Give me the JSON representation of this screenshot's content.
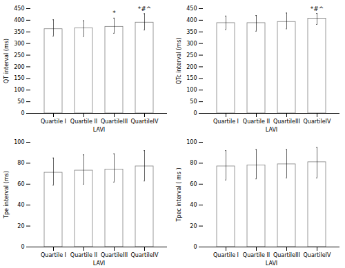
{
  "chart_data": [
    {
      "type": "bar",
      "xlabel": "LAVI",
      "ylabel": "QT interval (ms)",
      "categories": [
        "Quartile I",
        "Quartile II",
        "QuartileIII",
        "QuartileIV"
      ],
      "values": [
        362,
        366,
        372,
        390
      ],
      "error_upper": [
        40,
        32,
        37,
        38
      ],
      "error_lower": [
        30,
        35,
        28,
        32
      ],
      "ylim": [
        0,
        450
      ],
      "yticks": [
        0,
        50,
        100,
        150,
        200,
        250,
        300,
        350,
        400,
        450
      ],
      "color": "#ffffff",
      "annotations": [
        {
          "category": "QuartileIII",
          "text": "*"
        },
        {
          "category": "QuartileIV",
          "text": "*#^"
        }
      ]
    },
    {
      "type": "bar",
      "xlabel": "LAVI",
      "ylabel": "QTc interval (ms)",
      "categories": [
        "Quartile I",
        "Quartile II",
        "QuartileIII",
        "QuartileIV"
      ],
      "values": [
        388,
        388,
        393,
        407
      ],
      "error_upper": [
        30,
        32,
        38,
        22
      ],
      "error_lower": [
        28,
        35,
        30,
        25
      ],
      "ylim": [
        0,
        450
      ],
      "yticks": [
        0,
        50,
        100,
        150,
        200,
        250,
        300,
        350,
        400,
        450
      ],
      "color": "#ffffff",
      "annotations": [
        {
          "category": "QuartileIV",
          "text": "*#^"
        }
      ]
    },
    {
      "type": "bar",
      "xlabel": "LAVI",
      "ylabel": "Tpe interval (ms)",
      "categories": [
        "Quartile I",
        "Quartile II",
        "QuartileIII",
        "QuartileIV"
      ],
      "values": [
        71,
        73,
        74,
        77
      ],
      "error_upper": [
        14,
        15,
        15,
        15
      ],
      "error_lower": [
        12,
        13,
        12,
        14
      ],
      "ylim": [
        0,
        100
      ],
      "yticks": [
        0,
        20,
        40,
        60,
        80,
        100
      ],
      "color": "#ffffff"
    },
    {
      "type": "bar",
      "xlabel": "LAVI",
      "ylabel": "Tpec interval ( ms )",
      "categories": [
        "Quartile I",
        "Quartile II",
        "QuartileIII",
        "QuartileIV"
      ],
      "values": [
        77,
        78,
        79,
        81
      ],
      "error_upper": [
        15,
        15,
        14,
        14
      ],
      "error_lower": [
        13,
        13,
        13,
        15
      ],
      "ylim": [
        0,
        100
      ],
      "yticks": [
        0,
        20,
        40,
        60,
        80,
        100
      ],
      "color": "#ffffff"
    }
  ]
}
